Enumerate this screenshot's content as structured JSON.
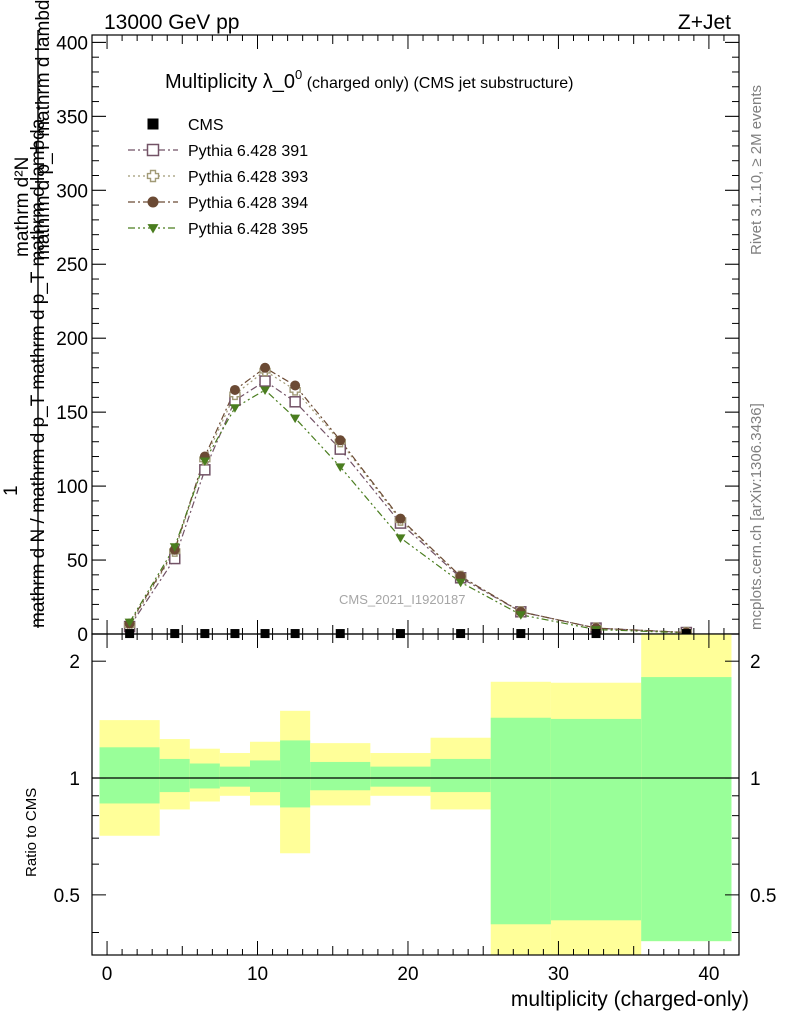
{
  "header": {
    "energy": "13000 GeV pp",
    "process": "Z+Jet"
  },
  "side": {
    "rivet": "Rivet 3.1.10, ≥ 2M events",
    "mcplots": "mcplots.cern.ch [arXiv:1306.3436]"
  },
  "watermark": "CMS_2021_I1920187",
  "title": {
    "main": "Multiplicity λ_0",
    "sup": "0",
    "sub": " (charged only) (CMS jet substructure)"
  },
  "ylabel_main": {
    "numerator": "mathrm d²N",
    "numerator_side": "mathrm d p_T mathrm d lambda",
    "left": "1",
    "denominator": "mathrm d N / mathrm d p_T mathrm d p_T mathrm d lambda"
  },
  "ratio_ylabel": "Ratio to CMS",
  "xlabel": "multiplicity (charged-only)",
  "colors": {
    "cms": "#000000",
    "p391": "#725266",
    "p393": "#a19a76",
    "p394": "#6b4a34",
    "p395": "#4a7d1f",
    "band_outer": "#ffff99",
    "band_inner": "#99ff99"
  },
  "chart_data": [
    {
      "type": "line",
      "title": "Multiplicity λ_0^0 (charged only) (CMS jet substructure)",
      "xlabel": "multiplicity (charged-only)",
      "xlim": [
        -1,
        42
      ],
      "ylim": [
        0,
        405
      ],
      "x_ticks": [
        0,
        10,
        20,
        30,
        40
      ],
      "y_ticks": [
        0,
        50,
        100,
        150,
        200,
        250,
        300,
        350,
        400
      ],
      "legend_position": "top-left",
      "series": [
        {
          "name": "CMS",
          "marker": "square-filled",
          "x": [
            1.5,
            4.5,
            6.5,
            8.5,
            10.5,
            12.5,
            15.5,
            19.5,
            23.5,
            27.5,
            32.5,
            38.5
          ],
          "y": [
            0.3,
            0.3,
            0.3,
            0.3,
            0.3,
            0.3,
            0.3,
            0.3,
            0.3,
            0.3,
            0.3,
            0.3
          ]
        },
        {
          "name": "Pythia 6.428 391",
          "marker": "square-open",
          "dash": "dash-dot",
          "x": [
            1.5,
            4.5,
            6.5,
            8.5,
            10.5,
            12.5,
            15.5,
            19.5,
            23.5,
            27.5,
            32.5,
            38.5
          ],
          "y": [
            5,
            51,
            111,
            158,
            171,
            157,
            125,
            75,
            38,
            15,
            4,
            1
          ]
        },
        {
          "name": "Pythia 6.428 393",
          "marker": "cross-open",
          "dash": "dot",
          "x": [
            1.5,
            4.5,
            6.5,
            8.5,
            10.5,
            12.5,
            15.5,
            19.5,
            23.5,
            27.5,
            32.5,
            38.5
          ],
          "y": [
            6,
            56,
            118,
            162,
            178,
            165,
            130,
            77,
            39,
            15,
            4,
            1
          ]
        },
        {
          "name": "Pythia 6.428 394",
          "marker": "circle-filled",
          "dash": "dash-dot",
          "x": [
            1.5,
            4.5,
            6.5,
            8.5,
            10.5,
            12.5,
            15.5,
            19.5,
            23.5,
            27.5,
            32.5,
            38.5
          ],
          "y": [
            7,
            57,
            120,
            165,
            180,
            168,
            131,
            78,
            39,
            15,
            4,
            1
          ]
        },
        {
          "name": "Pythia 6.428 395",
          "marker": "triangle-down-filled",
          "dash": "dash-dot-dot",
          "x": [
            1.5,
            4.5,
            6.5,
            8.5,
            10.5,
            12.5,
            15.5,
            19.5,
            23.5,
            27.5,
            32.5,
            38.5
          ],
          "y": [
            8,
            59,
            117,
            153,
            165,
            146,
            113,
            65,
            35,
            13,
            3,
            0.8
          ]
        }
      ]
    },
    {
      "type": "area",
      "ylabel": "Ratio to CMS",
      "xlim": [
        -1,
        42
      ],
      "ylim": [
        0.35,
        2.35
      ],
      "y_scale": "log",
      "y_ticks": [
        0.5,
        1,
        2
      ],
      "bins": [
        [
          -0.5,
          3.5
        ],
        [
          3.5,
          5.5
        ],
        [
          5.5,
          7.5
        ],
        [
          7.5,
          9.5
        ],
        [
          9.5,
          11.5
        ],
        [
          11.5,
          13.5
        ],
        [
          13.5,
          17.5
        ],
        [
          17.5,
          21.5
        ],
        [
          21.5,
          25.5
        ],
        [
          25.5,
          29.5
        ],
        [
          29.5,
          35.5
        ],
        [
          35.5,
          41.5
        ]
      ],
      "outer_band": {
        "low": [
          0.71,
          0.83,
          0.87,
          0.9,
          0.85,
          0.64,
          0.85,
          0.9,
          0.83,
          0.34,
          0.35,
          0.38
        ],
        "high": [
          1.41,
          1.26,
          1.19,
          1.16,
          1.24,
          1.49,
          1.23,
          1.16,
          1.27,
          1.77,
          1.76,
          2.5
        ]
      },
      "inner_band": {
        "low": [
          0.86,
          0.92,
          0.94,
          0.95,
          0.92,
          0.84,
          0.93,
          0.95,
          0.92,
          0.42,
          0.43,
          0.38
        ],
        "high": [
          1.2,
          1.12,
          1.09,
          1.07,
          1.11,
          1.25,
          1.1,
          1.07,
          1.12,
          1.43,
          1.42,
          1.82
        ]
      },
      "reference_line": 1
    }
  ]
}
